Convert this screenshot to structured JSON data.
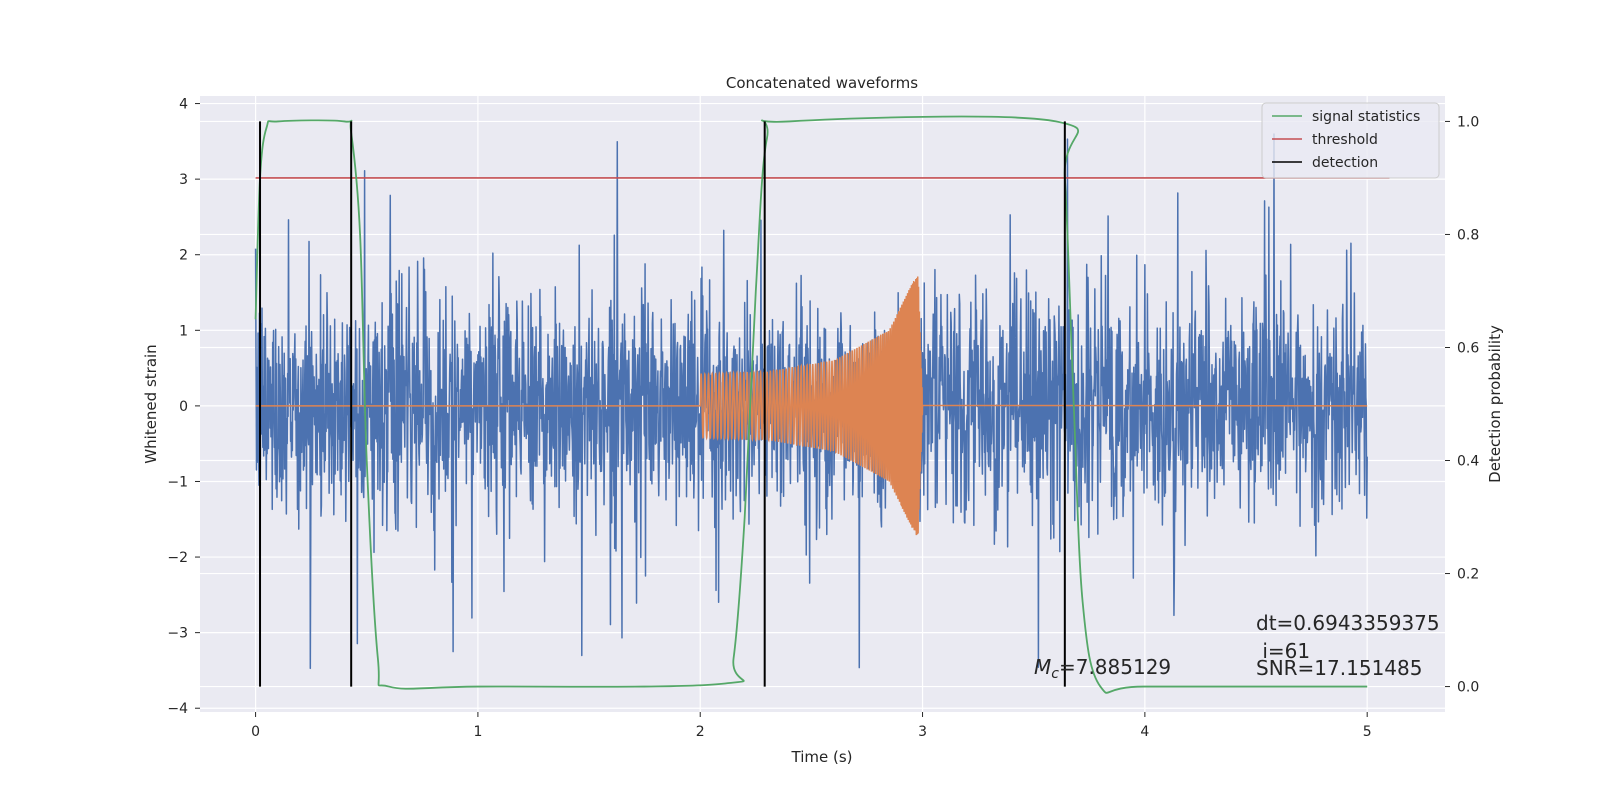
{
  "chart_data": {
    "type": "line",
    "title": "Concatenated waveforms",
    "xlabel": "Time (s)",
    "ylabel": "Whitened strain",
    "ylabel_right": "Detection probability",
    "xlim": [
      -0.25,
      5.35
    ],
    "ylim": [
      -4.05,
      4.1
    ],
    "ylim_right": [
      -0.045,
      1.045
    ],
    "xticks": [
      0,
      1,
      2,
      3,
      4,
      5
    ],
    "yticks": [
      -4,
      -3,
      -2,
      -1,
      0,
      1,
      2,
      3,
      4
    ],
    "yticks_right": [
      0.0,
      0.2,
      0.4,
      0.6,
      0.8,
      1.0
    ],
    "xtick_labels": [
      "0",
      "1",
      "2",
      "3",
      "4",
      "5"
    ],
    "ytick_labels": [
      "−4",
      "−3",
      "−2",
      "−1",
      "0",
      "1",
      "2",
      "3",
      "4"
    ],
    "ytick_right_labels": [
      "0.0",
      "0.2",
      "0.4",
      "0.6",
      "0.8",
      "1.0"
    ],
    "grid": true,
    "legend_position": "top-right",
    "colors": {
      "noise": "#4c72b0",
      "signal": "#dd8452",
      "statistics": "#55a868",
      "threshold": "#c44e52",
      "detection": "#000000",
      "background": "#eaeaf2",
      "grid": "#ffffff"
    },
    "series": [
      {
        "name": "",
        "role": "noise",
        "x_range": [
          0,
          5
        ],
        "amplitude_std": 0.75,
        "peak_min": -3.65,
        "peak_max": 3.65
      },
      {
        "name": "",
        "role": "chirp",
        "x_range": [
          2.0,
          3.0
        ],
        "envelope": [
          [
            2.0,
            0.42
          ],
          [
            2.3,
            0.45
          ],
          [
            2.6,
            0.6
          ],
          [
            2.85,
            1.0
          ],
          [
            2.95,
            1.6
          ],
          [
            2.98,
            1.75
          ],
          [
            3.0,
            0.05
          ]
        ]
      },
      {
        "name": "signal statistics",
        "role": "statistics",
        "axis": "right",
        "x": [
          0.0,
          0.02,
          0.05,
          0.1,
          0.4,
          0.43,
          0.47,
          0.5,
          0.55,
          0.6,
          1.0,
          2.1,
          2.15,
          2.2,
          2.25,
          2.3,
          2.4,
          3.6,
          3.64,
          3.68,
          3.72,
          3.8,
          4.0,
          5.0
        ],
        "y": [
          0.65,
          0.9,
          0.99,
          1.0,
          1.0,
          0.98,
          0.8,
          0.4,
          0.05,
          0.0,
          0.0,
          0.005,
          0.05,
          0.3,
          0.7,
          0.97,
          1.0,
          1.0,
          0.9,
          0.5,
          0.15,
          0.0,
          0.0,
          0.0
        ]
      },
      {
        "name": "threshold",
        "role": "threshold",
        "axis": "right",
        "x": [
          0.0,
          5.1
        ],
        "y": [
          0.9,
          0.9
        ]
      },
      {
        "name": "detection",
        "role": "detection",
        "axis": "right",
        "x": [
          0.02,
          0.43,
          2.29,
          3.64
        ],
        "y_range": [
          0.0,
          1.0
        ]
      }
    ],
    "legend": [
      "signal statistics",
      "threshold",
      "detection"
    ],
    "annotations": {
      "mc_label": "M",
      "mc_sub": "c",
      "mc_value": "=7.885129",
      "dt": "dt=0.6943359375",
      "i": " i=61",
      "snr": "SNR=17.151485"
    }
  }
}
